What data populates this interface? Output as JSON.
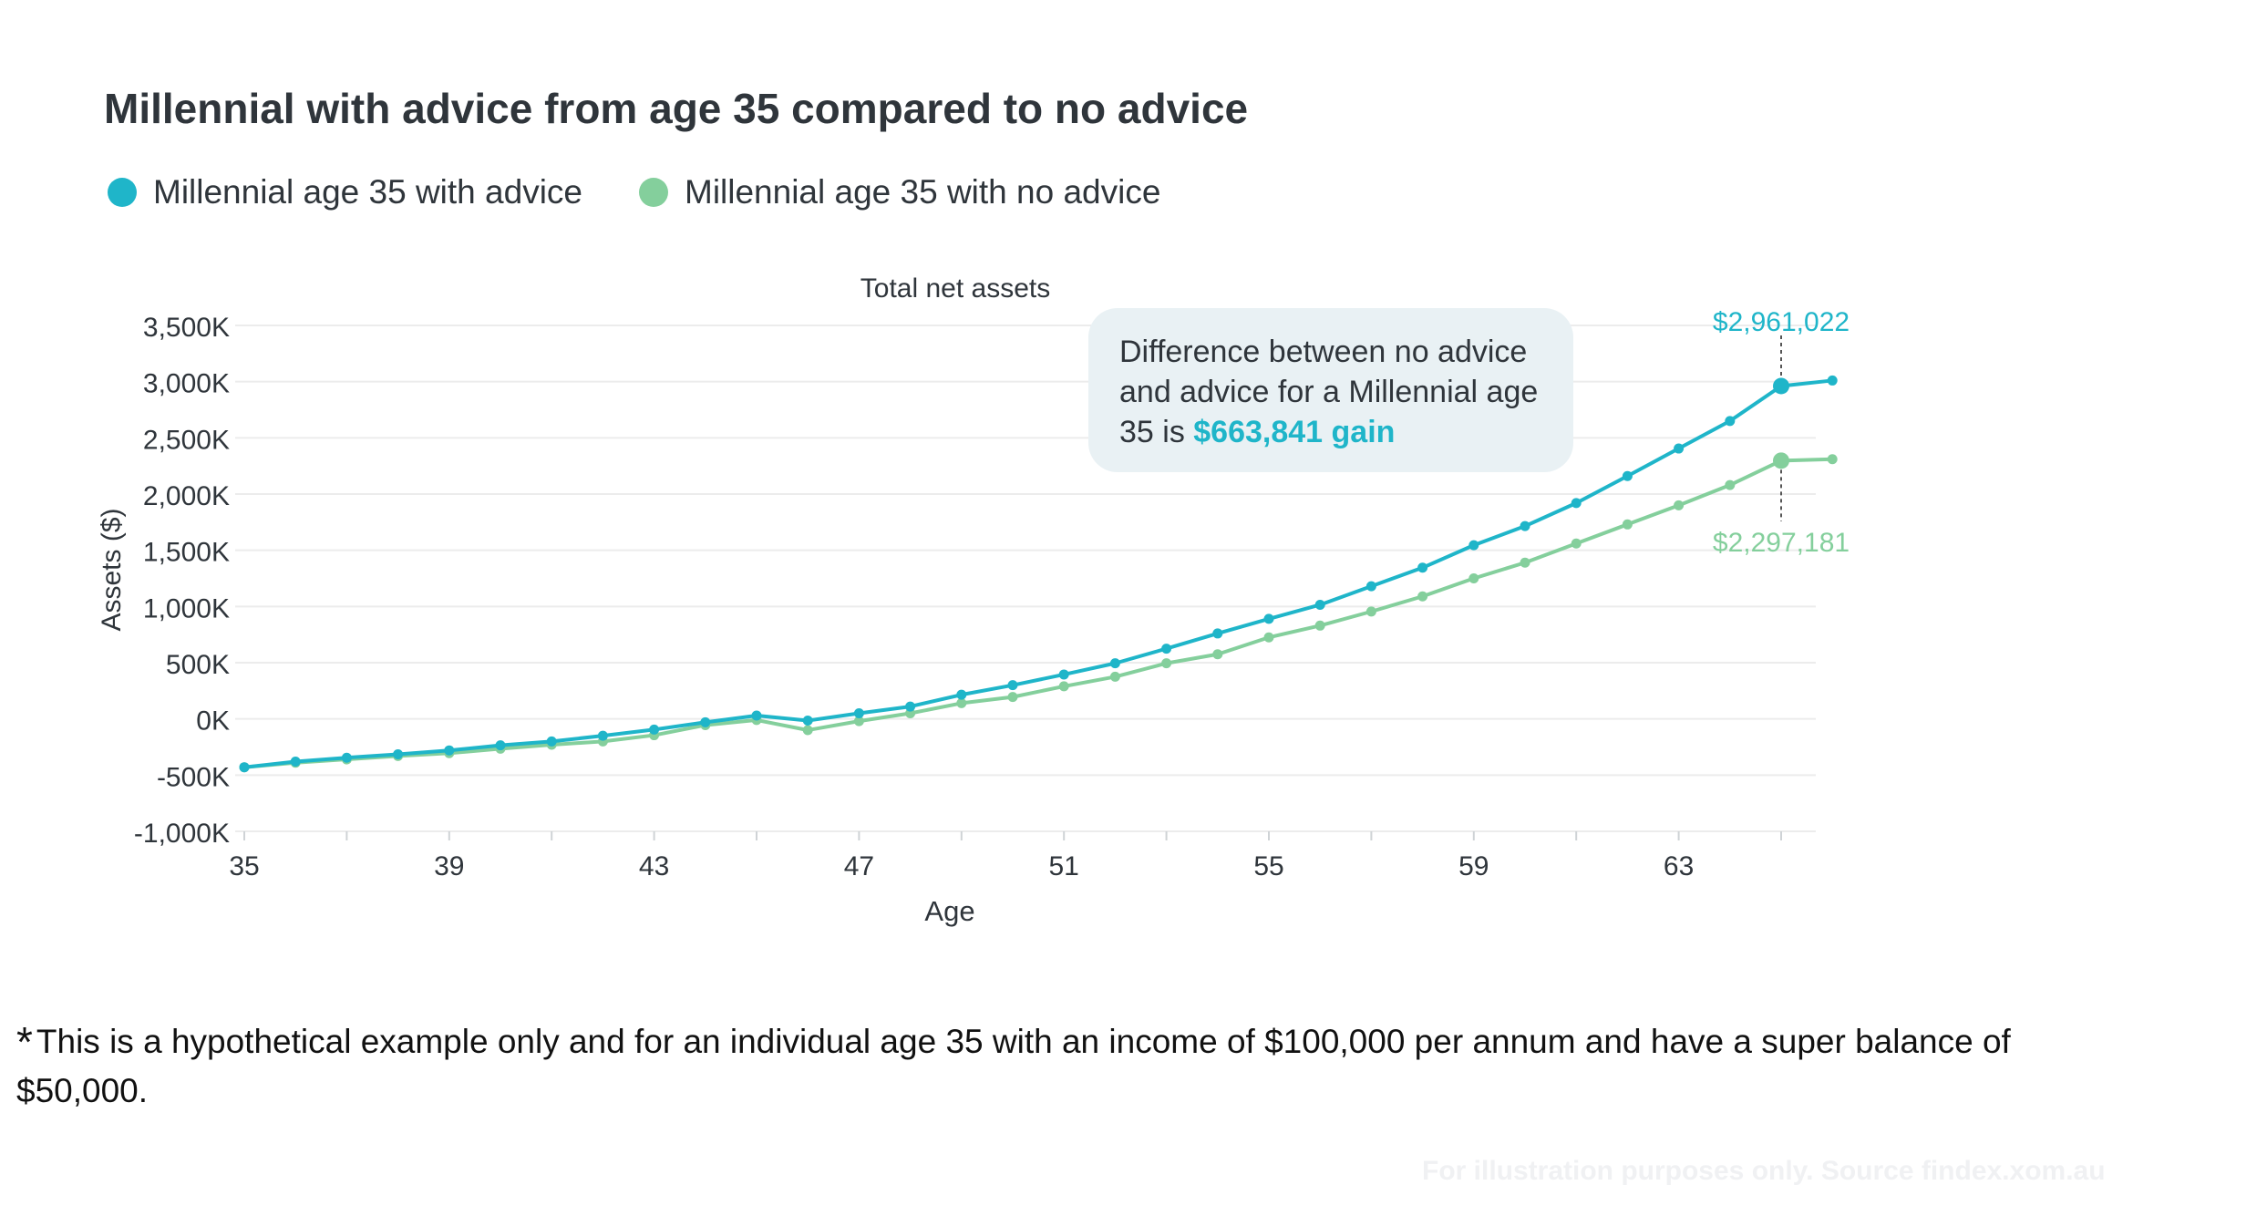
{
  "title": "Millennial with advice from age 35 compared to no advice",
  "footnote": {
    "star": "*",
    "text": "This is a hypothetical example only and for an individual age 35 with an income of $100,000 per annum and have a super balance of $50,000."
  },
  "watermark": "For illustration purposes only. Source findex.xom.au",
  "callout": {
    "text": "Difference between no advice and advice for a Millennial age 35 is ",
    "highlight": "$663,841 gain"
  },
  "colors": {
    "with_advice": "#1fb5c9",
    "no_advice": "#84cf9c",
    "grid": "#ececec",
    "callout_bg": "#e9f1f4"
  },
  "chart_data": {
    "type": "line",
    "title": "Total net assets",
    "xlabel": "Age",
    "ylabel": "Assets ($)",
    "xlim": [
      35,
      66
    ],
    "ylim": [
      -1000,
      3500
    ],
    "x_ticks": [
      35,
      39,
      43,
      47,
      51,
      55,
      59,
      63
    ],
    "y_ticks": [
      {
        "value": 3500,
        "label": "3,500K"
      },
      {
        "value": 3000,
        "label": "3,000K"
      },
      {
        "value": 2500,
        "label": "2,500K"
      },
      {
        "value": 2000,
        "label": "2,000K"
      },
      {
        "value": 1500,
        "label": "1,500K"
      },
      {
        "value": 1000,
        "label": "1,000K"
      },
      {
        "value": 500,
        "label": "500K"
      },
      {
        "value": 0,
        "label": "0K"
      },
      {
        "value": -500,
        "label": "-500K"
      },
      {
        "value": -1000,
        "label": "-1,000K"
      }
    ],
    "grid": true,
    "legend_position": "top-left",
    "x": [
      35,
      36,
      37,
      38,
      39,
      40,
      41,
      42,
      43,
      44,
      45,
      46,
      47,
      48,
      49,
      50,
      51,
      52,
      53,
      54,
      55,
      56,
      57,
      58,
      59,
      60,
      61,
      62,
      63,
      64,
      65,
      66
    ],
    "series": [
      {
        "name": "Millennial age 35 with advice",
        "color": "#1fb5c9",
        "values": [
          -430,
          -380,
          -345,
          -315,
          -280,
          -235,
          -200,
          -150,
          -95,
          -30,
          30,
          -15,
          50,
          110,
          215,
          300,
          395,
          495,
          625,
          760,
          890,
          1015,
          1180,
          1345,
          1545,
          1715,
          1920,
          2160,
          2405,
          2650,
          2961,
          3010
        ]
      },
      {
        "name": "Millennial age 35 with no advice",
        "color": "#84cf9c",
        "values": [
          -430,
          -390,
          -360,
          -330,
          -305,
          -265,
          -230,
          -200,
          -145,
          -55,
          -10,
          -100,
          -20,
          50,
          140,
          195,
          290,
          375,
          495,
          575,
          725,
          830,
          955,
          1090,
          1250,
          1390,
          1560,
          1730,
          1900,
          2080,
          2297,
          2310
        ]
      }
    ],
    "annotations": [
      {
        "series": 0,
        "x": 65,
        "label": "$2,961,022"
      },
      {
        "series": 1,
        "x": 65,
        "label": "$2,297,181"
      }
    ]
  }
}
